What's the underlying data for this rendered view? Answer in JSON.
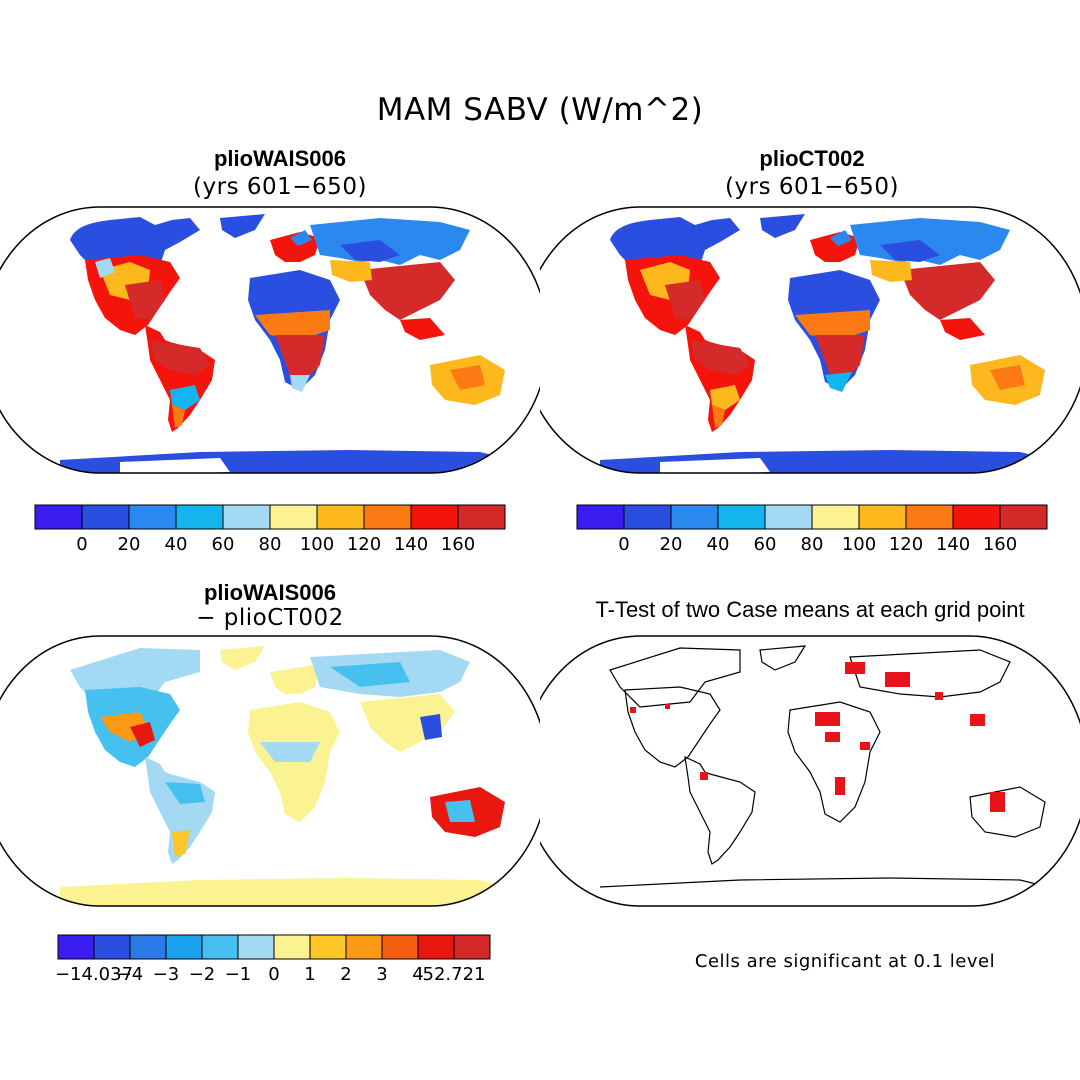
{
  "figure": {
    "title": "MAM SABV (W/m^2)"
  },
  "panels": {
    "top_left": {
      "title": "plioWAIS006",
      "subtitle": "(yrs 601−650)"
    },
    "top_right": {
      "title": "plioCT002",
      "subtitle": "(yrs 601−650)"
    },
    "bottom_left": {
      "title": "plioWAIS006",
      "subtitle": "− plioCT002"
    },
    "bottom_right": {
      "title": "T-Test of two Case means at each grid point",
      "note": "Cells are significant at 0.1 level"
    }
  },
  "colorbars": {
    "absolute": {
      "colors": [
        "#3a1df0",
        "#2a4fe0",
        "#2a88ef",
        "#14b5ef",
        "#a3d9f2",
        "#fbf291",
        "#fdb81d",
        "#fb7a13",
        "#f5140c",
        "#d42a2a"
      ],
      "labels": [
        "0",
        "20",
        "40",
        "60",
        "80",
        "100",
        "120",
        "140",
        "160"
      ]
    },
    "difference": {
      "colors": [
        "#3a1df0",
        "#2a4fe0",
        "#2a7ae8",
        "#1aa2ee",
        "#46c0ef",
        "#a3d9f2",
        "#fbf291",
        "#fdc525",
        "#fb9a14",
        "#f55d0f",
        "#e81710",
        "#d42a2a"
      ],
      "labels": [
        "−14.037",
        "−4",
        "−3",
        "−2",
        "−1",
        "0",
        "1",
        "2",
        "3",
        "4",
        "52.721"
      ]
    }
  },
  "map_style": {
    "projection": "Robinson",
    "ocean": "#ffffff",
    "outline": "#000000",
    "significance_color": "#e8121a"
  }
}
